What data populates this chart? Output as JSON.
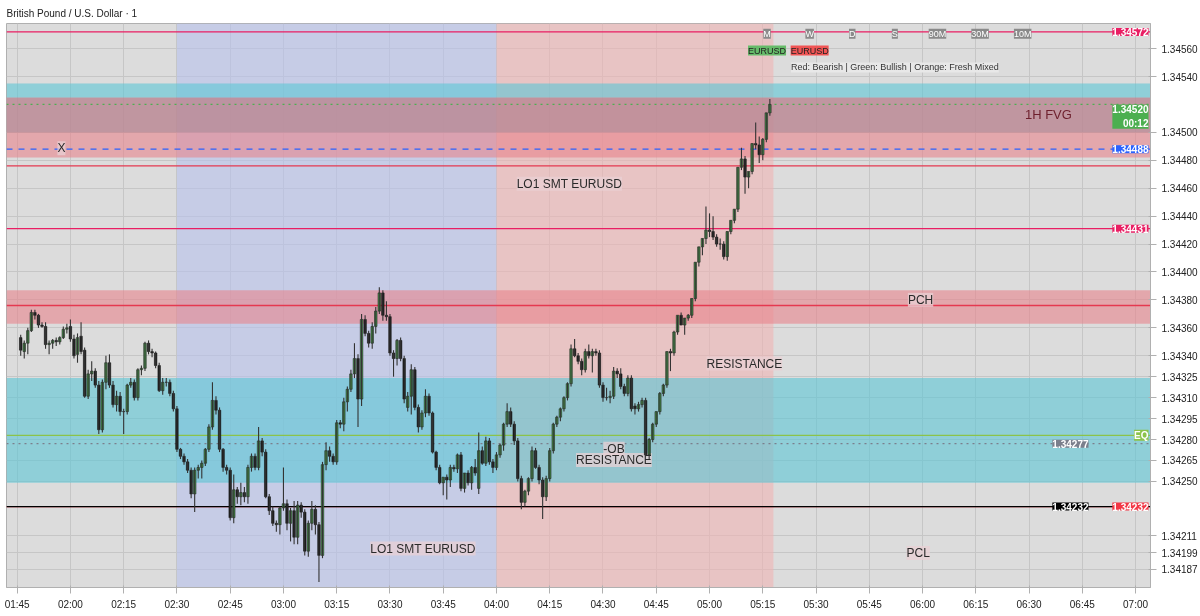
{
  "chart_data": {
    "type": "candlestick",
    "title": "British Pound / U.S. Dollar · 1",
    "x": [
      1.7667,
      1.7833,
      1.8,
      1.8167,
      1.8333,
      1.85,
      1.8667,
      1.8833,
      1.9,
      1.9167,
      1.9333,
      1.95,
      1.9667,
      1.9833,
      2.0,
      2.0167,
      2.0333,
      2.05,
      2.0667,
      2.0833,
      2.1,
      2.1167,
      2.1333,
      2.15,
      2.1667,
      2.1833,
      2.2,
      2.2167,
      2.2333,
      2.25,
      2.2667,
      2.2833,
      2.3,
      2.3167,
      2.3333,
      2.35,
      2.3667,
      2.3833,
      2.4,
      2.4167,
      2.4333,
      2.45,
      2.4667,
      2.4833,
      2.5,
      2.5167,
      2.5333,
      2.55,
      2.5667,
      2.5833,
      2.6,
      2.6167,
      2.6333,
      2.65,
      2.6667,
      2.6833,
      2.7,
      2.7167,
      2.7333,
      2.75,
      2.7667,
      2.7833,
      2.8,
      2.8167,
      2.8333,
      2.85,
      2.8667,
      2.8833,
      2.9,
      2.9167,
      2.9333,
      2.95,
      2.9667,
      2.9833,
      3.0,
      3.0167,
      3.0333,
      3.05,
      3.0667,
      3.0833,
      3.1,
      3.1167,
      3.1333,
      3.15,
      3.1667,
      3.1833,
      3.2,
      3.2167,
      3.2333,
      3.25,
      3.2667,
      3.2833,
      3.3,
      3.3167,
      3.3333,
      3.35,
      3.3667,
      3.3833,
      3.4,
      3.4167,
      3.4333,
      3.45,
      3.4667,
      3.4833,
      3.5,
      3.5167,
      3.5333,
      3.55,
      3.5667,
      3.5833,
      3.6,
      3.6167,
      3.6333,
      3.65,
      3.6667,
      3.6833,
      3.7,
      3.7167,
      3.7333,
      3.75,
      3.7667,
      3.7833,
      3.8,
      3.8167,
      3.8333,
      3.85,
      3.8667,
      3.8833,
      3.9,
      3.9167,
      3.9333,
      3.95,
      3.9667,
      3.9833,
      4.0,
      4.0167,
      4.0333,
      4.05,
      4.0667,
      4.0833,
      4.1,
      4.1167,
      4.1333,
      4.15,
      4.1667,
      4.1833,
      4.2,
      4.2167,
      4.2333,
      4.25,
      4.2667,
      4.2833,
      4.3,
      4.3167,
      4.3333,
      4.35,
      4.3667,
      4.3833,
      4.4,
      4.4167,
      4.4333,
      4.45,
      4.4667,
      4.4833,
      4.5,
      4.5167,
      4.5333,
      4.55,
      4.5667,
      4.5833,
      4.6,
      4.6167,
      4.6333,
      4.65,
      4.6667,
      4.6833,
      4.7,
      4.7167,
      4.7333,
      4.75,
      4.7667,
      4.7833,
      4.8,
      4.8167,
      4.8333,
      4.85,
      4.8667,
      4.8833,
      4.9,
      4.9167,
      4.9333,
      4.95,
      4.9667,
      4.9833,
      5.0,
      5.0167,
      5.0333,
      5.05,
      5.0667,
      5.0833,
      5.1,
      5.1167,
      5.1333,
      5.15,
      5.1667,
      5.1833,
      5.2,
      5.2167,
      5.2333,
      5.25,
      5.2667,
      5.2833
    ],
    "ohlc": [
      [
        1.34353,
        1.34355,
        1.3434,
        1.34344
      ],
      [
        1.34343,
        1.34351,
        1.34338,
        1.34349
      ],
      [
        1.34349,
        1.3436,
        1.34341,
        1.34358
      ],
      [
        1.34358,
        1.34373,
        1.34357,
        1.34371
      ],
      [
        1.34371,
        1.34373,
        1.34366,
        1.34369
      ],
      [
        1.34369,
        1.3437,
        1.3436,
        1.34362
      ],
      [
        1.34362,
        1.34364,
        1.3436,
        1.34361
      ],
      [
        1.34361,
        1.34364,
        1.34345,
        1.34348
      ],
      [
        1.34348,
        1.34351,
        1.34341,
        1.34349
      ],
      [
        1.34349,
        1.34352,
        1.34345,
        1.34351
      ],
      [
        1.34351,
        1.34353,
        1.34347,
        1.3435
      ],
      [
        1.3435,
        1.34354,
        1.34348,
        1.34353
      ],
      [
        1.34353,
        1.34361,
        1.34352,
        1.34359
      ],
      [
        1.34359,
        1.34363,
        1.34356,
        1.3436
      ],
      [
        1.34361,
        1.34366,
        1.3435,
        1.34352
      ],
      [
        1.34352,
        1.34355,
        1.34338,
        1.3434
      ],
      [
        1.34341,
        1.34356,
        1.34335,
        1.34353
      ],
      [
        1.34354,
        1.34364,
        1.34341,
        1.34343
      ],
      [
        1.34344,
        1.34346,
        1.3431,
        1.34311
      ],
      [
        1.34311,
        1.3433,
        1.34309,
        1.34327
      ],
      [
        1.34327,
        1.34336,
        1.34322,
        1.34329
      ],
      [
        1.34329,
        1.34331,
        1.34317,
        1.34319
      ],
      [
        1.34319,
        1.34322,
        1.34284,
        1.34287
      ],
      [
        1.34287,
        1.34323,
        1.34285,
        1.34321
      ],
      [
        1.34321,
        1.3434,
        1.34316,
        1.34335
      ],
      [
        1.34335,
        1.34341,
        1.34317,
        1.34319
      ],
      [
        1.34319,
        1.34322,
        1.34303,
        1.34305
      ],
      [
        1.34305,
        1.34315,
        1.343,
        1.34311
      ],
      [
        1.34311,
        1.34314,
        1.34297,
        1.343
      ],
      [
        1.343,
        1.34302,
        1.34284,
        1.343
      ],
      [
        1.343,
        1.3432,
        1.34298,
        1.34319
      ],
      [
        1.34319,
        1.34324,
        1.34317,
        1.34321
      ],
      [
        1.34321,
        1.34323,
        1.34308,
        1.3431
      ],
      [
        1.3431,
        1.34331,
        1.34308,
        1.3433
      ],
      [
        1.3433,
        1.34333,
        1.34326,
        1.34331
      ],
      [
        1.34331,
        1.3435,
        1.34329,
        1.34349
      ],
      [
        1.34349,
        1.34351,
        1.34341,
        1.34343
      ],
      [
        1.34343,
        1.34345,
        1.34339,
        1.34342
      ],
      [
        1.34342,
        1.34343,
        1.34331,
        1.34333
      ],
      [
        1.34333,
        1.34335,
        1.34314,
        1.34315
      ],
      [
        1.34315,
        1.34324,
        1.34312,
        1.34321
      ],
      [
        1.34321,
        1.34324,
        1.34318,
        1.34321
      ],
      [
        1.34321,
        1.34323,
        1.34311,
        1.34313
      ],
      [
        1.34313,
        1.34315,
        1.343,
        1.34302
      ],
      [
        1.34302,
        1.34304,
        1.34271,
        1.34273
      ],
      [
        1.34273,
        1.34274,
        1.34266,
        1.34268
      ],
      [
        1.34268,
        1.3427,
        1.34262,
        1.34264
      ],
      [
        1.34264,
        1.34266,
        1.34256,
        1.34258
      ],
      [
        1.34258,
        1.3426,
        1.34238,
        1.34241
      ],
      [
        1.34241,
        1.3426,
        1.34228,
        1.34258
      ],
      [
        1.34258,
        1.34262,
        1.34252,
        1.3426
      ],
      [
        1.3426,
        1.34265,
        1.34252,
        1.34263
      ],
      [
        1.34263,
        1.34274,
        1.34261,
        1.34273
      ],
      [
        1.34273,
        1.34291,
        1.34271,
        1.34289
      ],
      [
        1.34289,
        1.34321,
        1.34287,
        1.34308
      ],
      [
        1.34308,
        1.34311,
        1.34298,
        1.34301
      ],
      [
        1.34301,
        1.34303,
        1.34271,
        1.34273
      ],
      [
        1.34273,
        1.34274,
        1.34257,
        1.3426
      ],
      [
        1.3426,
        1.34262,
        1.34255,
        1.34258
      ],
      [
        1.34258,
        1.3426,
        1.34222,
        1.34224
      ],
      [
        1.34224,
        1.34255,
        1.3422,
        1.34244
      ],
      [
        1.34244,
        1.34246,
        1.34234,
        1.34239
      ],
      [
        1.34239,
        1.34249,
        1.34233,
        1.34242
      ],
      [
        1.34242,
        1.34246,
        1.34235,
        1.34239
      ],
      [
        1.34239,
        1.34262,
        1.34234,
        1.3426
      ],
      [
        1.3426,
        1.3427,
        1.34257,
        1.34268
      ],
      [
        1.34268,
        1.3427,
        1.34258,
        1.3426
      ],
      [
        1.3426,
        1.34289,
        1.34258,
        1.34279
      ],
      [
        1.34279,
        1.34281,
        1.34268,
        1.34271
      ],
      [
        1.34271,
        1.34273,
        1.34238,
        1.34239
      ],
      [
        1.34239,
        1.34241,
        1.34226,
        1.34229
      ],
      [
        1.34229,
        1.34232,
        1.34218,
        1.3422
      ],
      [
        1.3422,
        1.34222,
        1.34214,
        1.34219
      ],
      [
        1.34219,
        1.34232,
        1.34212,
        1.34231
      ],
      [
        1.34231,
        1.3426,
        1.34229,
        1.34234
      ],
      [
        1.34234,
        1.34237,
        1.34215,
        1.3422
      ],
      [
        1.3422,
        1.34231,
        1.34207,
        1.34229
      ],
      [
        1.34229,
        1.34236,
        1.34205,
        1.3421
      ],
      [
        1.3421,
        1.34236,
        1.34205,
        1.34233
      ],
      [
        1.34233,
        1.34235,
        1.34224,
        1.34228
      ],
      [
        1.34228,
        1.3423,
        1.34197,
        1.342
      ],
      [
        1.342,
        1.34222,
        1.34196,
        1.3422
      ],
      [
        1.3422,
        1.34236,
        1.34215,
        1.3423
      ],
      [
        1.3423,
        1.34233,
        1.34212,
        1.34219
      ],
      [
        1.34219,
        1.34221,
        1.34178,
        1.34197
      ],
      [
        1.34197,
        1.34264,
        1.34195,
        1.34262
      ],
      [
        1.34262,
        1.34278,
        1.34258,
        1.34272
      ],
      [
        1.34272,
        1.34275,
        1.34264,
        1.34268
      ],
      [
        1.34268,
        1.3427,
        1.34262,
        1.34264
      ],
      [
        1.34264,
        1.34294,
        1.34262,
        1.34292
      ],
      [
        1.34292,
        1.34294,
        1.34288,
        1.34291
      ],
      [
        1.34291,
        1.3431,
        1.34286,
        1.34307
      ],
      [
        1.34307,
        1.34318,
        1.343,
        1.34316
      ],
      [
        1.34316,
        1.3433,
        1.34314,
        1.34327
      ],
      [
        1.34327,
        1.34349,
        1.34324,
        1.34338
      ],
      [
        1.34338,
        1.34341,
        1.34289,
        1.34309
      ],
      [
        1.34309,
        1.3437,
        1.34304,
        1.34366
      ],
      [
        1.34366,
        1.34369,
        1.34354,
        1.34356
      ],
      [
        1.34356,
        1.34358,
        1.34346,
        1.34349
      ],
      [
        1.34349,
        1.34364,
        1.34345,
        1.34361
      ],
      [
        1.34361,
        1.34375,
        1.34356,
        1.34372
      ],
      [
        1.34372,
        1.34389,
        1.3437,
        1.34385
      ],
      [
        1.34385,
        1.34387,
        1.34365,
        1.34369
      ],
      [
        1.34369,
        1.34379,
        1.34365,
        1.34368
      ],
      [
        1.34368,
        1.3437,
        1.3434,
        1.34342
      ],
      [
        1.34342,
        1.34344,
        1.34325,
        1.34338
      ],
      [
        1.34338,
        1.34352,
        1.34333,
        1.34351
      ],
      [
        1.34351,
        1.34353,
        1.34336,
        1.34338
      ],
      [
        1.34338,
        1.3434,
        1.34306,
        1.34309
      ],
      [
        1.34303,
        1.34314,
        1.343,
        1.34311
      ],
      [
        1.34311,
        1.34334,
        1.34298,
        1.3433
      ],
      [
        1.3433,
        1.34332,
        1.34301,
        1.34303
      ],
      [
        1.34303,
        1.34305,
        1.34285,
        1.34289
      ],
      [
        1.34289,
        1.34301,
        1.34287,
        1.34299
      ],
      [
        1.34299,
        1.34316,
        1.34296,
        1.34311
      ],
      [
        1.34311,
        1.34313,
        1.34297,
        1.34299
      ],
      [
        1.34299,
        1.343,
        1.3427,
        1.34271
      ],
      [
        1.34271,
        1.34272,
        1.34258,
        1.3426
      ],
      [
        1.3426,
        1.34262,
        1.34248,
        1.34249
      ],
      [
        1.34249,
        1.34253,
        1.3424,
        1.34253
      ],
      [
        1.34253,
        1.34255,
        1.34237,
        1.34251
      ],
      [
        1.34251,
        1.34262,
        1.34246,
        1.3426
      ],
      [
        1.3426,
        1.34262,
        1.34257,
        1.34259
      ],
      [
        1.34259,
        1.3427,
        1.34256,
        1.34269
      ],
      [
        1.34269,
        1.34271,
        1.34243,
        1.34245
      ],
      [
        1.34245,
        1.34256,
        1.34242,
        1.34256
      ],
      [
        1.34256,
        1.34258,
        1.34247,
        1.34249
      ],
      [
        1.34249,
        1.34261,
        1.34244,
        1.3426
      ],
      [
        1.3426,
        1.34266,
        1.34254,
        1.34256
      ],
      [
        1.34245,
        1.34285,
        1.34241,
        1.34272
      ],
      [
        1.34272,
        1.34275,
        1.34262,
        1.34263
      ],
      [
        1.34263,
        1.34282,
        1.34261,
        1.34279
      ],
      [
        1.34279,
        1.34281,
        1.34262,
        1.34264
      ],
      [
        1.34264,
        1.34266,
        1.34256,
        1.3426
      ],
      [
        1.3426,
        1.34271,
        1.34258,
        1.34269
      ],
      [
        1.34269,
        1.34277,
        1.34267,
        1.34276
      ],
      [
        1.34276,
        1.34292,
        1.34272,
        1.34291
      ],
      [
        1.34291,
        1.34306,
        1.34289,
        1.343
      ],
      [
        1.343,
        1.34303,
        1.34289,
        1.34291
      ],
      [
        1.34291,
        1.34293,
        1.34276,
        1.34279
      ],
      [
        1.34279,
        1.34281,
        1.3425,
        1.34252
      ],
      [
        1.34252,
        1.34254,
        1.3423,
        1.34235
      ],
      [
        1.34235,
        1.34244,
        1.34232,
        1.34243
      ],
      [
        1.34243,
        1.34253,
        1.3424,
        1.34252
      ],
      [
        1.34252,
        1.34275,
        1.3425,
        1.34272
      ],
      [
        1.34272,
        1.34274,
        1.34259,
        1.3426
      ],
      [
        1.3426,
        1.34262,
        1.34248,
        1.34251
      ],
      [
        1.34251,
        1.34253,
        1.34223,
        1.34239
      ],
      [
        1.34239,
        1.34254,
        1.34236,
        1.34252
      ],
      [
        1.34252,
        1.34274,
        1.3425,
        1.34272
      ],
      [
        1.34272,
        1.34292,
        1.3427,
        1.34291
      ],
      [
        1.34291,
        1.34297,
        1.34289,
        1.34296
      ],
      [
        1.34296,
        1.34303,
        1.34293,
        1.34302
      ],
      [
        1.34302,
        1.34311,
        1.343,
        1.3431
      ],
      [
        1.3431,
        1.34321,
        1.34308,
        1.3432
      ],
      [
        1.3432,
        1.34348,
        1.34318,
        1.34345
      ],
      [
        1.34345,
        1.34352,
        1.34339,
        1.3434
      ],
      [
        1.3434,
        1.34342,
        1.34334,
        1.34336
      ],
      [
        1.34336,
        1.34338,
        1.34326,
        1.3433
      ],
      [
        1.3433,
        1.34345,
        1.34328,
        1.34343
      ],
      [
        1.34343,
        1.34348,
        1.34338,
        1.3434
      ],
      [
        1.3434,
        1.34345,
        1.34328,
        1.34343
      ],
      [
        1.34343,
        1.34345,
        1.3434,
        1.34342
      ],
      [
        1.34342,
        1.34344,
        1.34317,
        1.34319
      ],
      [
        1.34319,
        1.34321,
        1.34307,
        1.3431
      ],
      [
        1.3431,
        1.34317,
        1.34308,
        1.3431
      ],
      [
        1.3431,
        1.34315,
        1.34306,
        1.34311
      ],
      [
        1.34311,
        1.34332,
        1.34309,
        1.34329
      ],
      [
        1.34329,
        1.34331,
        1.34324,
        1.34327
      ],
      [
        1.34327,
        1.34331,
        1.34316,
        1.34318
      ],
      [
        1.34318,
        1.3432,
        1.34311,
        1.34313
      ],
      [
        1.34313,
        1.34326,
        1.34311,
        1.34324
      ],
      [
        1.34324,
        1.34326,
        1.343,
        1.34302
      ],
      [
        1.34304,
        1.34306,
        1.34298,
        1.34302
      ],
      [
        1.34302,
        1.34307,
        1.343,
        1.34305
      ],
      [
        1.34305,
        1.3431,
        1.34303,
        1.34308
      ],
      [
        1.34308,
        1.3431,
        1.34268,
        1.34269
      ],
      [
        1.34269,
        1.34281,
        1.34266,
        1.3428
      ],
      [
        1.3428,
        1.34292,
        1.34278,
        1.34291
      ],
      [
        1.34291,
        1.343,
        1.34289,
        1.343
      ],
      [
        1.343,
        1.34314,
        1.34298,
        1.34313
      ],
      [
        1.34313,
        1.3432,
        1.34311,
        1.34319
      ],
      [
        1.34319,
        1.34343,
        1.34317,
        1.34343
      ],
      [
        1.34343,
        1.34345,
        1.34329,
        1.34342
      ],
      [
        1.34342,
        1.34358,
        1.3434,
        1.34357
      ],
      [
        1.34357,
        1.34369,
        1.34355,
        1.34369
      ],
      [
        1.34369,
        1.34371,
        1.34362,
        1.34362
      ],
      [
        1.34362,
        1.34367,
        1.34355,
        1.34367
      ],
      [
        1.34367,
        1.3437,
        1.34365,
        1.34369
      ],
      [
        1.34369,
        1.34381,
        1.34367,
        1.34381
      ],
      [
        1.34381,
        1.34407,
        1.34379,
        1.34407
      ],
      [
        1.34407,
        1.34418,
        1.34404,
        1.34418
      ],
      [
        1.34418,
        1.34424,
        1.34412,
        1.34424
      ],
      [
        1.34424,
        1.34447,
        1.3442,
        1.3443
      ],
      [
        1.3443,
        1.34442,
        1.34425,
        1.34429
      ],
      [
        1.34429,
        1.3444,
        1.34423,
        1.34425
      ],
      [
        1.34425,
        1.34427,
        1.34418,
        1.3442
      ],
      [
        1.3442,
        1.34424,
        1.34416,
        1.3442
      ],
      [
        1.3442,
        1.34422,
        1.34409,
        1.34411
      ],
      [
        1.34411,
        1.34429,
        1.34408,
        1.34429
      ],
      [
        1.34429,
        1.34437,
        1.34427,
        1.34437
      ],
      [
        1.34437,
        1.34445,
        1.34435,
        1.34445
      ],
      [
        1.34445,
        1.34475,
        1.34443,
        1.34475
      ],
      [
        1.34475,
        1.34489,
        1.34473,
        1.34481
      ],
      [
        1.34481,
        1.34483,
        1.34456,
        1.34468
      ],
      [
        1.34468,
        1.34472,
        1.3446,
        1.34472
      ],
      [
        1.34472,
        1.34492,
        1.3447,
        1.34492
      ],
      [
        1.34492,
        1.34507,
        1.34488,
        1.34491
      ],
      [
        1.34491,
        1.34497,
        1.34478,
        1.34484
      ],
      [
        1.34484,
        1.34496,
        1.3448,
        1.34495
      ],
      [
        1.34495,
        1.34514,
        1.34493,
        1.34514
      ],
      [
        1.34514,
        1.34524,
        1.34512,
        1.3452
      ]
    ],
    "xlim": [
      1.7,
      7.07
    ],
    "xticks": [
      {
        "value": 1.75,
        "label": "01:45"
      },
      {
        "value": 2,
        "label": "02:00"
      },
      {
        "value": 2.25,
        "label": "02:15"
      },
      {
        "value": 2.5,
        "label": "02:30"
      },
      {
        "value": 2.75,
        "label": "02:45"
      },
      {
        "value": 3,
        "label": "03:00"
      },
      {
        "value": 3.25,
        "label": "03:15"
      },
      {
        "value": 3.5,
        "label": "03:30"
      },
      {
        "value": 3.75,
        "label": "03:45"
      },
      {
        "value": 4,
        "label": "04:00"
      },
      {
        "value": 4.25,
        "label": "04:15"
      },
      {
        "value": 4.5,
        "label": "04:30"
      },
      {
        "value": 4.75,
        "label": "04:45"
      },
      {
        "value": 5,
        "label": "05:00"
      },
      {
        "value": 5.25,
        "label": "05:15"
      },
      {
        "value": 5.5,
        "label": "05:30"
      },
      {
        "value": 5.75,
        "label": "05:45"
      },
      {
        "value": 6,
        "label": "06:00"
      },
      {
        "value": 6.25,
        "label": "06:15"
      },
      {
        "value": 6.5,
        "label": "06:30"
      },
      {
        "value": 6.75,
        "label": "06:45"
      },
      {
        "value": 7,
        "label": "07:00"
      }
    ],
    "ylim": [
      1.34174,
      1.34578
    ],
    "yticks": [
      {
        "value": 1.3456,
        "label": "1.34560"
      },
      {
        "value": 1.3454,
        "label": "1.34540"
      },
      {
        "value": 1.345,
        "label": "1.34500"
      },
      {
        "value": 1.3448,
        "label": "1.34480"
      },
      {
        "value": 1.3446,
        "label": "1.34460"
      },
      {
        "value": 1.3444,
        "label": "1.34440"
      },
      {
        "value": 1.3442,
        "label": "1.34420"
      },
      {
        "value": 1.344,
        "label": "1.34400"
      },
      {
        "value": 1.3438,
        "label": "1.34380"
      },
      {
        "value": 1.3436,
        "label": "1.34360"
      },
      {
        "value": 1.3434,
        "label": "1.34340"
      },
      {
        "value": 1.34325,
        "label": "1.34325"
      },
      {
        "value": 1.3431,
        "label": "1.34310"
      },
      {
        "value": 1.34295,
        "label": "1.34295"
      },
      {
        "value": 1.3428,
        "label": "1.34280"
      },
      {
        "value": 1.34265,
        "label": "1.34265"
      },
      {
        "value": 1.3425,
        "label": "1.34250"
      },
      {
        "value": 1.34211,
        "label": "1.34211"
      },
      {
        "value": 1.34199,
        "label": "1.34199"
      },
      {
        "value": 1.34187,
        "label": "1.34187"
      }
    ],
    "grid": true,
    "bands": [
      {
        "axis": "x",
        "from": 2.5,
        "to": 4.0,
        "color": "#b8c2ec"
      },
      {
        "axis": "x",
        "from": 4.0,
        "to": 5.3,
        "color": "#f0b4b4"
      },
      {
        "axis": "y",
        "from": 1.34249,
        "to": 1.34324,
        "color": "#5cc6d6"
      },
      {
        "axis": "y",
        "from": 1.34363,
        "to": 1.34387,
        "color": "#e8838c"
      },
      {
        "axis": "y",
        "from": 1.34482,
        "to": 1.34525,
        "color": "#e8838c"
      },
      {
        "axis": "y",
        "from": 1.345,
        "to": 1.34525,
        "label": "1H  FVG",
        "color": "#a88a98"
      },
      {
        "axis": "y",
        "from": 1.34525,
        "to": 1.34535,
        "color": "#5cc6d6"
      }
    ],
    "ref_lines": [
      {
        "axis": "y",
        "value": 1.34572,
        "label": "1.34572",
        "color": "#e91e63"
      },
      {
        "axis": "y",
        "value": 1.3452,
        "label": "1.34520\n00:12",
        "color": "#4caf50",
        "line_style": "dotted"
      },
      {
        "axis": "y",
        "value": 1.34488,
        "label": "1.34488",
        "color": "#2962ff",
        "line_style": "dashed"
      },
      {
        "axis": "y",
        "value": 1.34476,
        "color": "#e53950"
      },
      {
        "axis": "y",
        "value": 1.34431,
        "label": "1.34431",
        "color": "#e91e63"
      },
      {
        "axis": "y",
        "value": 1.34376,
        "color": "#e53950"
      },
      {
        "axis": "y",
        "value": 1.34283,
        "label": "EQ",
        "color": "#8bc34a"
      },
      {
        "axis": "y",
        "value": 1.34277,
        "label": "1.34277",
        "color": "#7b7f8c",
        "line_style": "dotted"
      },
      {
        "axis": "y",
        "value": 1.34232,
        "label": "1.34232",
        "color": "#f23645"
      },
      {
        "axis": "y",
        "value": 1.34232,
        "label": "1.34232",
        "color": "#000000"
      }
    ],
    "annotations": [
      "X",
      "LO1 SMT EURUSD",
      "LO1 SMT EURUSD",
      "RESISTANCE",
      "-OB",
      "RESISTANCE",
      "PCH",
      "PCL",
      "M",
      "W",
      "D",
      "S",
      "90M",
      "30M",
      "10M",
      "EURUSD",
      "EURUSD",
      "Red: Bearish | Green: Bullish | Orange: Fresh Mixed"
    ]
  }
}
